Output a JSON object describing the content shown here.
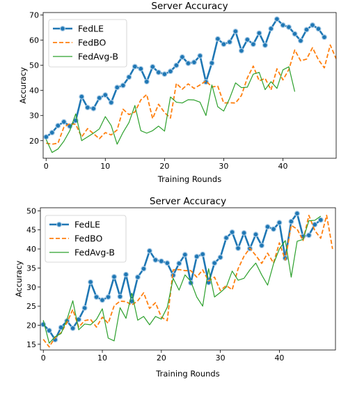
{
  "colors": {
    "FedLE": "#1f77b4",
    "FedBO": "#ff7f0e",
    "FedAvg-B": "#2ca02c"
  },
  "chart_data": [
    {
      "type": "line",
      "title": "Server Accuracy",
      "xlabel": "Training Rounds",
      "ylabel": "Accuracy",
      "xlim": [
        -0.5,
        49
      ],
      "ylim": [
        13,
        71
      ],
      "xticks": [
        0,
        10,
        20,
        30,
        40
      ],
      "yticks": [
        20,
        30,
        40,
        50,
        60,
        70
      ],
      "grid": false,
      "legend": "top-left",
      "series": [
        {
          "name": "FedLE",
          "marker": "circle",
          "style": "solid",
          "x": [
            0,
            1,
            2,
            3,
            4,
            5,
            6,
            7,
            8,
            9,
            10,
            11,
            12,
            13,
            14,
            15,
            16,
            17,
            18,
            19,
            20,
            21,
            22,
            23,
            24,
            25,
            26,
            27,
            28,
            29,
            30,
            31,
            32,
            33,
            34,
            35,
            36,
            37,
            38,
            39,
            40,
            41,
            42,
            43,
            44,
            45,
            46,
            47
          ],
          "y": [
            21.5,
            23.2,
            26,
            27.5,
            25.8,
            28,
            37.5,
            33.2,
            32.8,
            37,
            38.2,
            35.2,
            41.2,
            42,
            45.3,
            49.5,
            48.6,
            43.5,
            49.4,
            47.2,
            46.5,
            47.6,
            50,
            53.3,
            50.8,
            51.2,
            53.8,
            43.4,
            50.9,
            60.5,
            58.4,
            59.3,
            63.5,
            55.8,
            60.2,
            58.4,
            62.8,
            58,
            64.6,
            68.4,
            66,
            65.2,
            62.5,
            59.8,
            64.2,
            66,
            64.5,
            61.2
          ]
        },
        {
          "name": "FedBO",
          "style": "dashed",
          "x": [
            0,
            1,
            2,
            3,
            4,
            5,
            6,
            7,
            8,
            9,
            10,
            11,
            12,
            13,
            14,
            15,
            16,
            17,
            18,
            19,
            20,
            21,
            22,
            23,
            24,
            25,
            26,
            27,
            28,
            29,
            30,
            31,
            32,
            33,
            34,
            35,
            36,
            37,
            38,
            39,
            40,
            41,
            42,
            43,
            44,
            45,
            46,
            47,
            48,
            49
          ],
          "y": [
            19,
            18.6,
            19,
            25.4,
            26.8,
            26.5,
            21.5,
            24.8,
            22.8,
            20.8,
            23.2,
            22.3,
            24.3,
            32.5,
            30.4,
            31.4,
            36.2,
            38.4,
            28.8,
            34.5,
            31.2,
            29,
            42.8,
            40.5,
            42.6,
            40.8,
            42.2,
            43.8,
            41.4,
            41.7,
            35,
            35.1,
            35,
            38,
            45,
            49.7,
            43.8,
            44.8,
            40.2,
            48.6,
            44.2,
            48.3,
            56.1,
            51.8,
            52.5,
            57,
            52.2,
            49,
            58.1,
            52.6
          ]
        },
        {
          "name": "FedAvg-B",
          "style": "solid",
          "x": [
            0,
            1,
            2,
            3,
            4,
            5,
            6,
            7,
            8,
            9,
            10,
            11,
            12,
            13,
            14,
            15,
            16,
            17,
            18,
            19,
            20,
            21,
            22,
            23,
            24,
            25,
            26,
            27,
            28,
            29,
            30,
            31,
            32,
            33,
            34,
            35,
            36,
            37,
            38,
            39,
            40,
            41,
            42
          ],
          "y": [
            20.5,
            15.3,
            16.7,
            19.8,
            24,
            30.7,
            20,
            21.5,
            23,
            24.7,
            29.6,
            26,
            18.6,
            23.3,
            27.2,
            34,
            24,
            23,
            24,
            25.8,
            23.8,
            37.4,
            35.3,
            35,
            36.3,
            36.2,
            35.3,
            30,
            42.2,
            33.5,
            31.8,
            36.8,
            43,
            41.1,
            41.3,
            46.5,
            47.2,
            40.3,
            43.5,
            40.8,
            48.2,
            49.4,
            39.5
          ]
        }
      ]
    },
    {
      "type": "line",
      "title": "Server Accuracy",
      "xlabel": "Training Rounds",
      "ylabel": "Accuracy",
      "xlim": [
        -0.5,
        49.5
      ],
      "ylim": [
        13.5,
        50.8
      ],
      "xticks": [
        0,
        10,
        20,
        30,
        40
      ],
      "yticks": [
        15,
        20,
        25,
        30,
        35,
        40,
        45,
        50
      ],
      "grid": false,
      "legend": "top-left",
      "series": [
        {
          "name": "FedLE",
          "marker": "circle",
          "style": "solid",
          "x": [
            0,
            1,
            2,
            3,
            4,
            5,
            6,
            7,
            8,
            9,
            10,
            11,
            12,
            13,
            14,
            15,
            16,
            17,
            18,
            19,
            20,
            21,
            22,
            23,
            24,
            25,
            26,
            27,
            28,
            29,
            30,
            31,
            32,
            33,
            34,
            35,
            36,
            37,
            38,
            39,
            40,
            41,
            42,
            43,
            44,
            45,
            46,
            47
          ],
          "y": [
            20.2,
            18.6,
            16.2,
            19.4,
            21.1,
            19.2,
            21.5,
            24.5,
            31.3,
            27.4,
            26.6,
            27.4,
            32.7,
            27.5,
            33.3,
            26.3,
            32.6,
            34.8,
            39.5,
            37.1,
            36.8,
            36.3,
            33.1,
            36.2,
            38.5,
            31.1,
            38,
            38.6,
            31.2,
            36.3,
            37.8,
            42.9,
            44.4,
            40.2,
            44.2,
            40.1,
            43.8,
            40.9,
            45.8,
            45.2,
            46.9,
            37.6,
            47.2,
            49.3,
            43.3,
            43.6,
            46.4,
            47.6
          ]
        },
        {
          "name": "FedBO",
          "style": "dashed",
          "x": [
            0,
            1,
            2,
            3,
            4,
            5,
            6,
            7,
            8,
            9,
            10,
            11,
            12,
            13,
            14,
            15,
            16,
            17,
            18,
            19,
            20,
            21,
            22,
            23,
            24,
            25,
            26,
            27,
            28,
            29,
            30,
            31,
            32,
            33,
            34,
            35,
            36,
            37,
            38,
            39,
            40,
            41,
            42,
            43,
            44,
            45,
            46,
            47,
            48,
            49
          ],
          "y": [
            16.3,
            14.3,
            16.8,
            18,
            20.7,
            24.1,
            19.5,
            21.2,
            21.5,
            19.5,
            22.1,
            20.5,
            25.1,
            26.3,
            26.2,
            25.3,
            26.4,
            28.5,
            24.4,
            25.9,
            22.1,
            21.2,
            34.5,
            34.6,
            34.3,
            34.3,
            32.6,
            34.5,
            31.6,
            32.6,
            29.1,
            30.4,
            29.3,
            34.8,
            38.1,
            40.2,
            38.3,
            36.2,
            38.9,
            36.3,
            41.6,
            37.1,
            46.2,
            45.2,
            42.2,
            48.8,
            44.8,
            42.8,
            48.8,
            40
          ]
        },
        {
          "name": "FedAvg-B",
          "style": "solid",
          "x": [
            0,
            1,
            2,
            3,
            4,
            5,
            6,
            7,
            8,
            9,
            10,
            11,
            12,
            13,
            14,
            15,
            16,
            17,
            18,
            19,
            20,
            21,
            22,
            23,
            24,
            25,
            26,
            27,
            28,
            29,
            30,
            31,
            32,
            33,
            34,
            35,
            36,
            37,
            38,
            39,
            40,
            41,
            42,
            43,
            44,
            45,
            46,
            47
          ],
          "y": [
            21.3,
            15.3,
            17,
            17.8,
            21.5,
            26.4,
            18.8,
            20.3,
            20.1,
            21.5,
            24.3,
            16.6,
            15.9,
            24.6,
            21.8,
            28.4,
            21.3,
            22.3,
            20.1,
            22.3,
            21.6,
            24.7,
            32.3,
            29.2,
            33.2,
            31.5,
            27.4,
            25,
            34.8,
            27.4,
            28.6,
            30,
            34.2,
            31.8,
            32.3,
            34.5,
            36.3,
            33.2,
            30.5,
            36.1,
            40,
            42.2,
            32.6,
            42,
            42.5,
            47.4,
            47.5,
            48.6
          ]
        }
      ]
    }
  ]
}
